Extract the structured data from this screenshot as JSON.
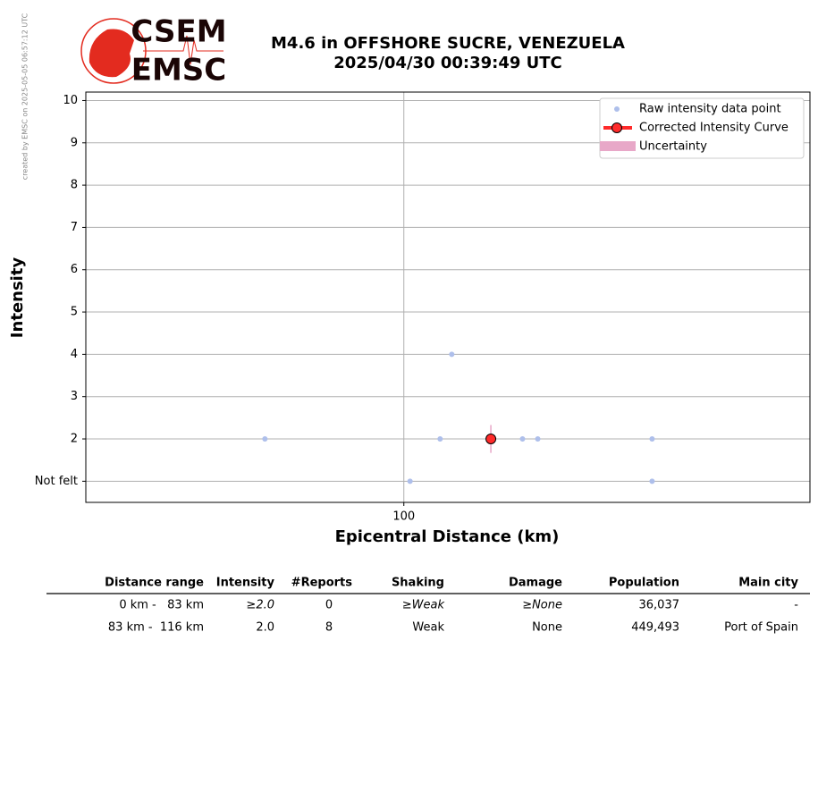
{
  "credit": "created by EMSC on 2025-05-05 06:57:12 UTC",
  "logo": [
    "CSEM",
    "EMSC"
  ],
  "chart_data": {
    "type": "scatter",
    "title": "M4.6 in OFFSHORE SUCRE, VENEZUELA",
    "subtitle": "2025/04/30 00:39:49 UTC",
    "x_label": "Epicentral Distance (km)",
    "y_label": "Intensity",
    "x_scale": "log",
    "xlim": [
      60,
      192
    ],
    "xticks": [
      100
    ],
    "ylim": [
      0.5,
      10.2
    ],
    "yticks": [
      {
        "value": 1,
        "label": "Not felt"
      },
      2,
      3,
      4,
      5,
      6,
      7,
      8,
      9,
      10
    ],
    "grid": true,
    "legend": "upper right",
    "series": [
      {
        "name": "Raw intensity data point",
        "color": "#aebfeb",
        "x": [
          80,
          101,
          106,
          108,
          121,
          124,
          149,
          149
        ],
        "values": [
          2,
          1,
          2,
          4,
          2,
          2,
          2,
          1
        ]
      },
      {
        "name": "Corrected Intensity Curve",
        "color": "#ff2a2a",
        "x": [
          115
        ],
        "values": [
          2
        ],
        "error": [
          0.33
        ]
      }
    ],
    "uncertainty": {
      "name": "Uncertainty",
      "color": "#e8a8c8"
    }
  },
  "table": {
    "header": [
      "Distance range",
      "Intensity",
      "#Reports",
      "Shaking",
      "Damage",
      "Population",
      "Main city"
    ],
    "rows": [
      [
        "0 km -   83 km",
        "≥2.0",
        "0",
        "≥Weak",
        "≥None",
        "36,037",
        "-"
      ],
      [
        "83 km -  116 km",
        "2.0",
        "8",
        "Weak",
        "None",
        "449,493",
        "Port of Spain"
      ]
    ]
  }
}
